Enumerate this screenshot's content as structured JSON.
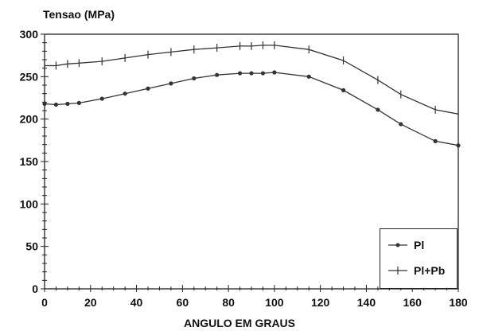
{
  "chart_data": {
    "type": "line",
    "title": "",
    "ylabel": "Tensao (MPa)",
    "xlabel": "ANGULO EM GRAUS",
    "xlim": [
      0,
      180
    ],
    "ylim": [
      0,
      300
    ],
    "xticks": [
      0,
      20,
      40,
      60,
      80,
      100,
      120,
      140,
      160,
      180
    ],
    "yticks": [
      0,
      50,
      100,
      150,
      200,
      250,
      300
    ],
    "grid": false,
    "legend_position": "bottom-right",
    "series": [
      {
        "name": "Pl",
        "marker": "dot",
        "color": "#333333",
        "x": [
          0,
          5,
          10,
          15,
          25,
          35,
          45,
          55,
          65,
          75,
          85,
          90,
          95,
          100,
          115,
          130,
          145,
          155,
          170,
          180
        ],
        "y": [
          218,
          217,
          218,
          219,
          224,
          230,
          236,
          242,
          248,
          252,
          254,
          254,
          254,
          255,
          250,
          234,
          211,
          194,
          174,
          169
        ]
      },
      {
        "name": "Pl+Pb",
        "marker": "plus",
        "color": "#333333",
        "x": [
          0,
          5,
          10,
          15,
          25,
          35,
          45,
          55,
          65,
          75,
          85,
          90,
          95,
          100,
          115,
          130,
          145,
          155,
          170,
          180
        ],
        "y": [
          263,
          263,
          265,
          266,
          268,
          272,
          276,
          279,
          282,
          284,
          286,
          286,
          287,
          287,
          282,
          269,
          246,
          229,
          211,
          206
        ]
      }
    ]
  }
}
